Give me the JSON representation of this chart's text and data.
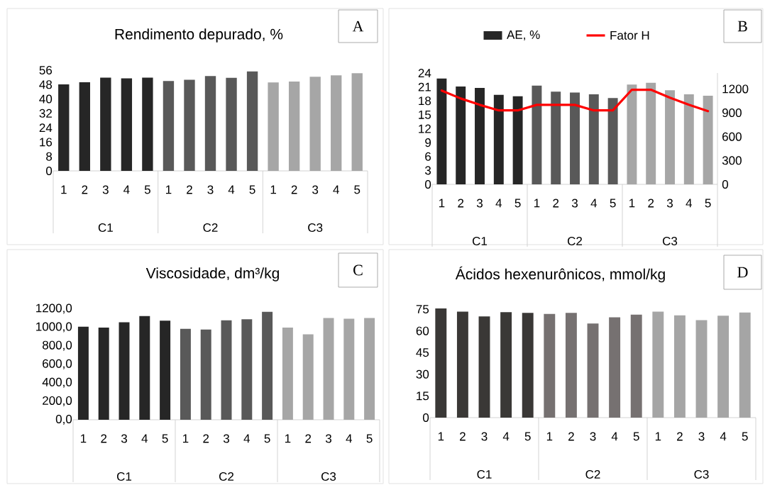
{
  "chart_data": [
    {
      "type": "bar",
      "title": "Rendimento depurado, %",
      "annotations": [
        "A",
        "C1",
        "C2",
        "C3"
      ],
      "categories": [
        "1",
        "2",
        "3",
        "4",
        "5",
        "1",
        "2",
        "3",
        "4",
        "5",
        "1",
        "2",
        "3",
        "4",
        "5"
      ],
      "values": [
        48.1,
        49.3,
        51.9,
        51.5,
        51.9,
        50.0,
        50.7,
        52.7,
        51.8,
        55.3,
        49.2,
        49.7,
        52.3,
        53.1,
        54.3
      ],
      "colors": [
        "#262626",
        "#262626",
        "#262626",
        "#262626",
        "#262626",
        "#595959",
        "#595959",
        "#595959",
        "#595959",
        "#595959",
        "#a6a6a6",
        "#a6a6a6",
        "#a6a6a6",
        "#a6a6a6",
        "#a6a6a6"
      ],
      "ylim": [
        0,
        56
      ],
      "yticks": [
        0,
        8,
        16,
        24,
        32,
        40,
        48,
        56
      ]
    },
    {
      "type": "bar",
      "annotations": [
        "B",
        "C1",
        "C2",
        "C3"
      ],
      "legend": "top",
      "categories": [
        "1",
        "2",
        "3",
        "4",
        "5",
        "1",
        "2",
        "3",
        "4",
        "5",
        "1",
        "2",
        "3",
        "4",
        "5"
      ],
      "series": [
        {
          "name": "AE, %",
          "type": "bar",
          "values": [
            22.8,
            21.1,
            20.8,
            19.3,
            19.0,
            21.3,
            20.0,
            19.8,
            19.4,
            18.6,
            21.5,
            21.9,
            20.3,
            19.4,
            19.1
          ],
          "colors": [
            "#262626",
            "#262626",
            "#262626",
            "#262626",
            "#262626",
            "#595959",
            "#595959",
            "#595959",
            "#595959",
            "#595959",
            "#a6a6a6",
            "#a6a6a6",
            "#a6a6a6",
            "#a6a6a6",
            "#a6a6a6"
          ]
        },
        {
          "name": "Fator H",
          "type": "line",
          "axis": "y2",
          "color": "#ff0000",
          "values": [
            1180,
            1080,
            1000,
            930,
            930,
            1000,
            1000,
            1000,
            930,
            930,
            1190,
            1190,
            1090,
            1000,
            920
          ]
        }
      ],
      "ylim": [
        0,
        24
      ],
      "yticks": [
        0,
        3,
        6,
        9,
        12,
        15,
        18,
        21,
        24
      ],
      "y2lim": [
        0,
        1400
      ],
      "y2ticks": [
        0,
        300,
        600,
        900,
        1200
      ]
    },
    {
      "type": "bar",
      "title": "Viscosidade, dm³/kg",
      "annotations": [
        "C",
        "C1",
        "C2",
        "C3"
      ],
      "categories": [
        "1",
        "2",
        "3",
        "4",
        "5",
        "1",
        "2",
        "3",
        "4",
        "5",
        "1",
        "2",
        "3",
        "4",
        "5"
      ],
      "values": [
        1007,
        997,
        1055,
        1121,
        1071,
        984,
        976,
        1076,
        1087,
        1168,
        997,
        923,
        1100,
        1092,
        1100
      ],
      "colors": [
        "#262626",
        "#262626",
        "#262626",
        "#262626",
        "#262626",
        "#595959",
        "#595959",
        "#595959",
        "#595959",
        "#595959",
        "#a6a6a6",
        "#a6a6a6",
        "#a6a6a6",
        "#a6a6a6",
        "#a6a6a6"
      ],
      "ylim": [
        0,
        1200
      ],
      "yticks": [
        {
          "value": 0,
          "label": "0,0"
        },
        {
          "value": 200,
          "label": "200,0"
        },
        {
          "value": 400,
          "label": "400,0"
        },
        {
          "value": 600,
          "label": "600,0"
        },
        {
          "value": 800,
          "label": "800,0"
        },
        {
          "value": 1000,
          "label": "1000,0"
        },
        {
          "value": 1200,
          "label": "1200,0"
        }
      ]
    },
    {
      "type": "bar",
      "title": "Ácidos hexenurônicos, mmol/kg",
      "annotations": [
        "D",
        "C1",
        "C2",
        "C3"
      ],
      "categories": [
        "1",
        "2",
        "3",
        "4",
        "5",
        "1",
        "2",
        "3",
        "4",
        "5",
        "1",
        "2",
        "3",
        "4",
        "5"
      ],
      "values": [
        75.5,
        73.3,
        70.0,
        72.9,
        72.4,
        71.7,
        72.4,
        65.1,
        69.4,
        71.2,
        73.3,
        70.7,
        67.4,
        70.5,
        72.7
      ],
      "colors": [
        "#3a3836",
        "#3a3836",
        "#3a3836",
        "#3a3836",
        "#3a3836",
        "#767171",
        "#767171",
        "#767171",
        "#767171",
        "#767171",
        "#a5a5a5",
        "#a5a5a5",
        "#a5a5a5",
        "#a5a5a5",
        "#a5a5a5"
      ],
      "ylim": [
        0,
        77
      ],
      "yticks": [
        0,
        15,
        30,
        45,
        60,
        75
      ]
    }
  ]
}
